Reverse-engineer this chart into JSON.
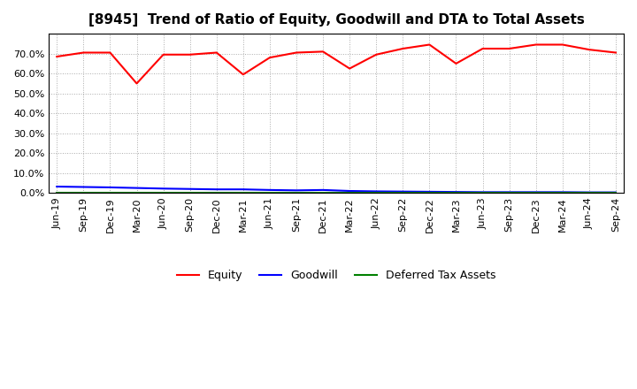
{
  "title": "[8945]  Trend of Ratio of Equity, Goodwill and DTA to Total Assets",
  "x_labels": [
    "Jun-19",
    "Sep-19",
    "Dec-19",
    "Mar-20",
    "Jun-20",
    "Sep-20",
    "Dec-20",
    "Mar-21",
    "Jun-21",
    "Sep-21",
    "Dec-21",
    "Mar-22",
    "Jun-22",
    "Sep-22",
    "Dec-22",
    "Mar-23",
    "Jun-23",
    "Sep-23",
    "Dec-23",
    "Mar-24",
    "Jun-24",
    "Sep-24"
  ],
  "equity": [
    68.5,
    70.5,
    70.5,
    55.0,
    69.5,
    69.5,
    70.5,
    59.5,
    68.0,
    70.5,
    71.0,
    62.5,
    69.5,
    72.5,
    74.5,
    65.0,
    72.5,
    72.5,
    74.5,
    74.5,
    72.0,
    70.5
  ],
  "goodwill": [
    3.2,
    3.0,
    2.8,
    2.5,
    2.2,
    2.0,
    1.8,
    1.8,
    1.5,
    1.3,
    1.5,
    1.0,
    0.8,
    0.7,
    0.6,
    0.5,
    0.4,
    0.4,
    0.4,
    0.4,
    0.3,
    0.3
  ],
  "dta": [
    0.3,
    0.3,
    0.3,
    0.3,
    0.3,
    0.3,
    0.3,
    0.3,
    0.3,
    0.3,
    0.3,
    0.3,
    0.3,
    0.3,
    0.3,
    0.3,
    0.3,
    0.3,
    0.3,
    0.3,
    0.3,
    0.3
  ],
  "equity_color": "#FF0000",
  "goodwill_color": "#0000FF",
  "dta_color": "#008000",
  "ylim": [
    0,
    80
  ],
  "yticks": [
    0.0,
    10.0,
    20.0,
    30.0,
    40.0,
    50.0,
    60.0,
    70.0
  ],
  "bg_color": "#FFFFFF",
  "plot_bg_color": "#FFFFFF",
  "grid_color": "#AAAAAA",
  "legend_labels": [
    "Equity",
    "Goodwill",
    "Deferred Tax Assets"
  ],
  "title_fontsize": 11,
  "tick_fontsize": 8,
  "legend_fontsize": 9
}
